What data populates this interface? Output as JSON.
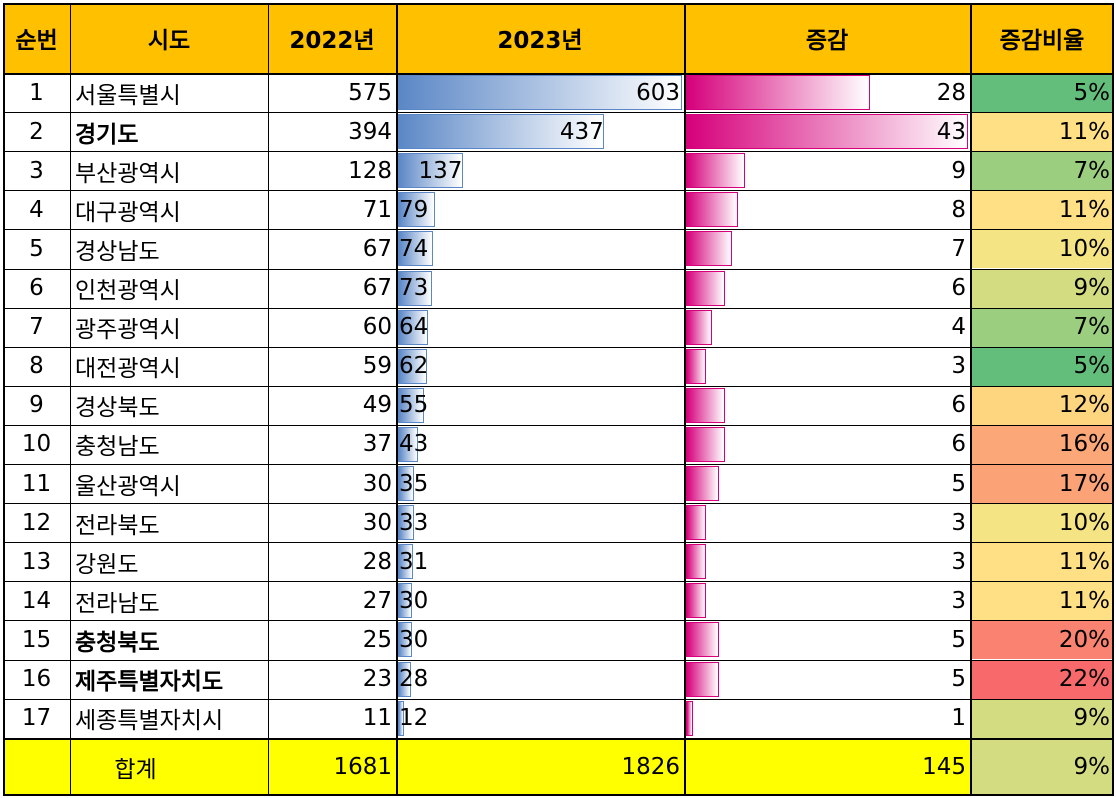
{
  "header": {
    "rank": "순번",
    "region": "시도",
    "y2022": "2022년",
    "y2023": "2023년",
    "change": "증감",
    "ratio": "증감비율"
  },
  "rows": [
    {
      "rank": "1",
      "region": "서울특별시",
      "bold": false,
      "v2022": 575,
      "v2023": 603,
      "change": 28,
      "ratio": "5%",
      "ratio_color": "#63be7b"
    },
    {
      "rank": "2",
      "region": "경기도",
      "bold": true,
      "v2022": 394,
      "v2023": 437,
      "change": 43,
      "ratio": "11%",
      "ratio_color": "#ffe084"
    },
    {
      "rank": "3",
      "region": "부산광역시",
      "bold": false,
      "v2022": 128,
      "v2023": 137,
      "change": 9,
      "ratio": "7%",
      "ratio_color": "#9bce7f"
    },
    {
      "rank": "4",
      "region": "대구광역시",
      "bold": false,
      "v2022": 71,
      "v2023": 79,
      "change": 8,
      "ratio": "11%",
      "ratio_color": "#ffe084"
    },
    {
      "rank": "5",
      "region": "경상남도",
      "bold": false,
      "v2022": 67,
      "v2023": 74,
      "change": 7,
      "ratio": "10%",
      "ratio_color": "#f5e484"
    },
    {
      "rank": "6",
      "region": "인천광역시",
      "bold": false,
      "v2022": 67,
      "v2023": 73,
      "change": 6,
      "ratio": "9%",
      "ratio_color": "#d4dc82"
    },
    {
      "rank": "7",
      "region": "광주광역시",
      "bold": false,
      "v2022": 60,
      "v2023": 64,
      "change": 4,
      "ratio": "7%",
      "ratio_color": "#9bce7f"
    },
    {
      "rank": "8",
      "region": "대전광역시",
      "bold": false,
      "v2022": 59,
      "v2023": 62,
      "change": 3,
      "ratio": "5%",
      "ratio_color": "#63be7b"
    },
    {
      "rank": "9",
      "region": "경상북도",
      "bold": false,
      "v2022": 49,
      "v2023": 55,
      "change": 6,
      "ratio": "12%",
      "ratio_color": "#ffd680"
    },
    {
      "rank": "10",
      "region": "충청남도",
      "bold": false,
      "v2022": 37,
      "v2023": 43,
      "change": 6,
      "ratio": "16%",
      "ratio_color": "#fca777"
    },
    {
      "rank": "11",
      "region": "울산광역시",
      "bold": false,
      "v2022": 30,
      "v2023": 35,
      "change": 5,
      "ratio": "17%",
      "ratio_color": "#fba276"
    },
    {
      "rank": "12",
      "region": "전라북도",
      "bold": false,
      "v2022": 30,
      "v2023": 33,
      "change": 3,
      "ratio": "10%",
      "ratio_color": "#f5e484"
    },
    {
      "rank": "13",
      "region": "강원도",
      "bold": false,
      "v2022": 28,
      "v2023": 31,
      "change": 3,
      "ratio": "11%",
      "ratio_color": "#ffe084"
    },
    {
      "rank": "14",
      "region": "전라남도",
      "bold": false,
      "v2022": 27,
      "v2023": 30,
      "change": 3,
      "ratio": "11%",
      "ratio_color": "#ffe084"
    },
    {
      "rank": "15",
      "region": "충청북도",
      "bold": true,
      "v2022": 25,
      "v2023": 30,
      "change": 5,
      "ratio": "20%",
      "ratio_color": "#f98370"
    },
    {
      "rank": "16",
      "region": "제주특별자치도",
      "bold": true,
      "v2022": 23,
      "v2023": 28,
      "change": 5,
      "ratio": "22%",
      "ratio_color": "#f8696b"
    },
    {
      "rank": "17",
      "region": "세종특별자치시",
      "bold": false,
      "v2022": 11,
      "v2023": 12,
      "change": 1,
      "ratio": "9%",
      "ratio_color": "#d4dc82"
    }
  ],
  "total": {
    "label": "합계",
    "v2022": "1681",
    "v2023": "1826",
    "change": "145",
    "ratio": "9%",
    "ratio_color": "#d4dc82"
  },
  "colors": {
    "header_bg": "#ffc000",
    "total_bg": "#ffff00",
    "bar_2023": "#5b87c6",
    "bar_change": "#d6007b"
  }
}
